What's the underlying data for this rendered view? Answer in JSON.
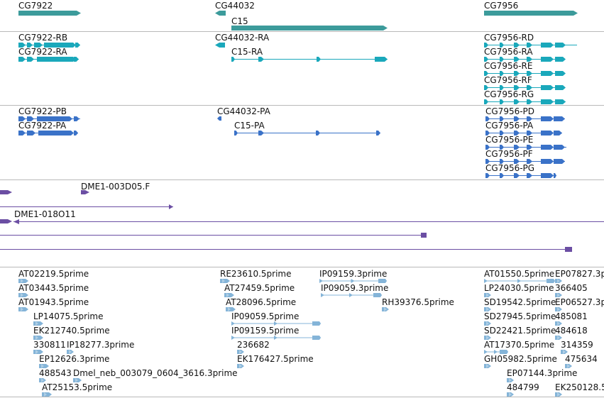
{
  "colors": {
    "gene": "#3c9b9b",
    "transcript_mrna": "#1aa8bb",
    "transcript_cds": "#3a72c8",
    "est": "#6b4ea3",
    "primer": "#84b4d8",
    "separator": "#b9b9b9",
    "text": "#111111"
  },
  "tracks": {
    "genes": [
      {
        "label": "CG7922"
      },
      {
        "label": "CG44032"
      },
      {
        "label": "C15"
      },
      {
        "label": "CG7956"
      }
    ],
    "transcripts": [
      {
        "label": "CG7922-RB"
      },
      {
        "label": "CG7922-RA"
      },
      {
        "label": "CG44032-RA"
      },
      {
        "label": "C15-RA"
      },
      {
        "label": "CG7956-RD"
      },
      {
        "label": "CG7956-RA"
      },
      {
        "label": "CG7956-RE"
      },
      {
        "label": "CG7956-RF"
      },
      {
        "label": "CG7956-RG"
      }
    ],
    "proteins": [
      {
        "label": "CG7922-PB"
      },
      {
        "label": "CG7922-PA"
      },
      {
        "label": "CG44032-PA"
      },
      {
        "label": "C15-PA"
      },
      {
        "label": "CG7956-PD"
      },
      {
        "label": "CG7956-PA"
      },
      {
        "label": "CG7956-PE"
      },
      {
        "label": "CG7956-PF"
      },
      {
        "label": "CG7956-PG"
      }
    ],
    "ests": [
      {
        "label": "DME1-003D05.F"
      },
      {
        "label": "DME1-018O11"
      }
    ],
    "primers": [
      {
        "label": "AT02219.5prime"
      },
      {
        "label": "AT03443.5prime"
      },
      {
        "label": "AT01943.5prime"
      },
      {
        "label": "LP14075.5prime"
      },
      {
        "label": "EK212740.5prime"
      },
      {
        "label": "330811"
      },
      {
        "label": "IP18277.3prime"
      },
      {
        "label": "EP12626.3prime"
      },
      {
        "label": "488543"
      },
      {
        "label": "Dmel_neb_003079_0604_3616.3prime"
      },
      {
        "label": "AT25153.5prime"
      },
      {
        "label": "RE23610.5prime"
      },
      {
        "label": "AT27459.5prime"
      },
      {
        "label": "AT28096.5prime"
      },
      {
        "label": "IP09059.5prime"
      },
      {
        "label": "IP09159.5prime"
      },
      {
        "label": "236682"
      },
      {
        "label": "EK176427.5prime"
      },
      {
        "label": "IP09159.3prime"
      },
      {
        "label": "IP09059.3prime"
      },
      {
        "label": "RH39376.5prime"
      },
      {
        "label": "AT01550.5prime"
      },
      {
        "label": "LP24030.5prime"
      },
      {
        "label": "SD19542.5prime"
      },
      {
        "label": "SD27945.5prime"
      },
      {
        "label": "SD22421.5prime"
      },
      {
        "label": "AT17370.5prime"
      },
      {
        "label": "GH05982.5prime"
      },
      {
        "label": "EP07144.3prime"
      },
      {
        "label": "484799"
      },
      {
        "label": "EP07827.3p"
      },
      {
        "label": "366405"
      },
      {
        "label": "EP06527.3p"
      },
      {
        "label": "485081"
      },
      {
        "label": "484618"
      },
      {
        "label": "314359"
      },
      {
        "label": "475634"
      },
      {
        "label": "EK250128.5"
      }
    ]
  }
}
